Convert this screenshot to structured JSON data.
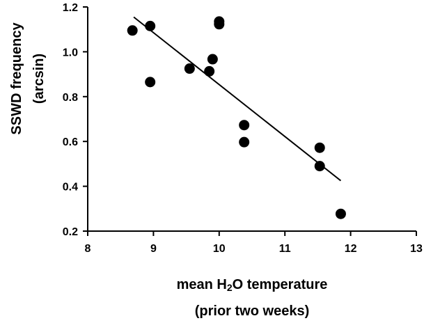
{
  "chart_data": {
    "type": "scatter",
    "xlabel": {
      "prefix": "mean H",
      "subscript": "2",
      "suffix": "O temperature",
      "line2": "(prior two weeks)"
    },
    "ylabel": {
      "line1": "SSWD frequency",
      "line2": "(arcsin)"
    },
    "xlim": [
      8,
      13
    ],
    "ylim": [
      0.2,
      1.2
    ],
    "x_ticks": [
      8,
      9,
      10,
      11,
      12,
      13
    ],
    "y_ticks": [
      0.2,
      0.4,
      0.6,
      0.8,
      1.0,
      1.2
    ],
    "x_tick_labels": [
      "8",
      "9",
      "10",
      "11",
      "12",
      "13"
    ],
    "y_tick_labels": [
      "0.2",
      "0.4",
      "0.6",
      "0.8",
      "1.0",
      "1.2"
    ],
    "grid": false,
    "points": [
      {
        "x": 8.68,
        "y": 1.095
      },
      {
        "x": 8.95,
        "y": 1.115
      },
      {
        "x": 8.95,
        "y": 0.865
      },
      {
        "x": 9.55,
        "y": 0.925
      },
      {
        "x": 9.85,
        "y": 0.913
      },
      {
        "x": 9.9,
        "y": 0.967
      },
      {
        "x": 10.0,
        "y": 1.135
      },
      {
        "x": 10.0,
        "y": 1.123
      },
      {
        "x": 10.38,
        "y": 0.673
      },
      {
        "x": 10.38,
        "y": 0.597
      },
      {
        "x": 11.53,
        "y": 0.572
      },
      {
        "x": 11.53,
        "y": 0.49
      },
      {
        "x": 11.85,
        "y": 0.277
      }
    ],
    "trendline": {
      "x1": 8.7,
      "y1": 1.155,
      "x2": 11.85,
      "y2": 0.425
    },
    "colors": {
      "points": "#000000",
      "line": "#000000",
      "axes": "#000000"
    }
  }
}
